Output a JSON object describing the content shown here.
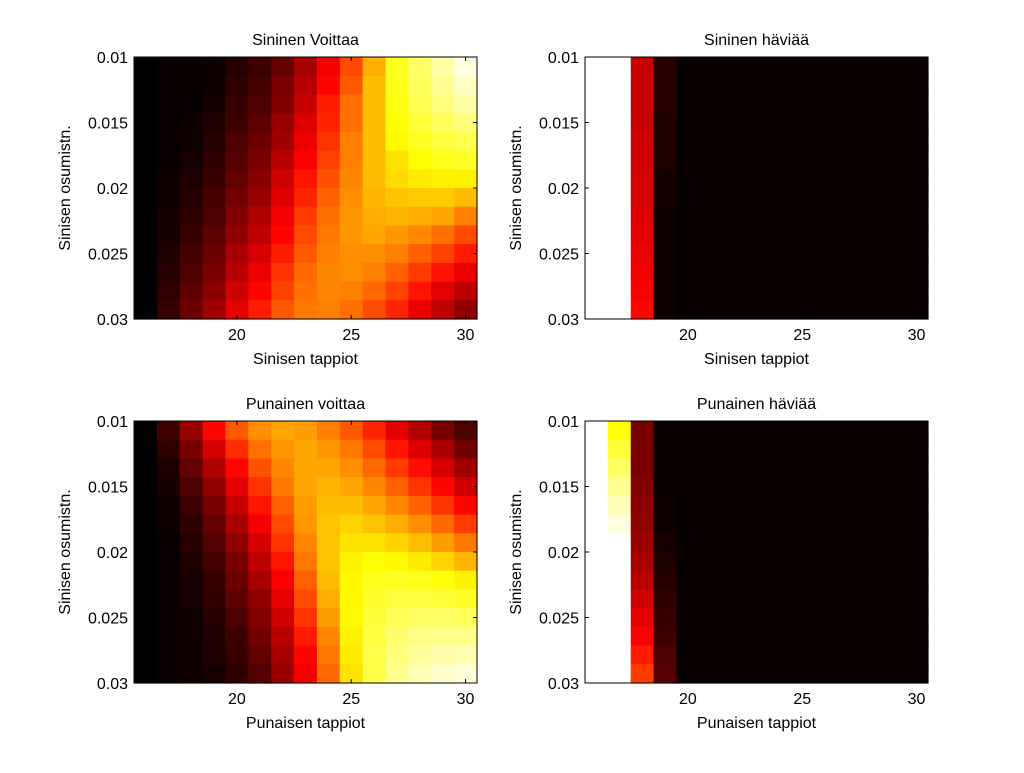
{
  "figure": {
    "colormap": "hot",
    "colormap_stops": [
      "#000000",
      "#ff0000",
      "#ffff00",
      "#ffffff"
    ],
    "frame_color": "#000000",
    "background": "#ffffff"
  },
  "chart_data": [
    {
      "type": "heatmap",
      "title": "Sininen Voittaa",
      "xlabel": "Sinisen tappiot",
      "ylabel": "Sinisen osumistn.",
      "xlim": [
        15.5,
        30.5
      ],
      "ylim": [
        0.03,
        0.01
      ],
      "xticks": [
        "20",
        "25",
        "30"
      ],
      "yticks": [
        "0.01",
        "0.015",
        "0.02",
        "0.025",
        "0.03"
      ],
      "x": [
        16,
        17,
        18,
        19,
        20,
        21,
        22,
        23,
        24,
        25,
        26,
        27,
        28,
        29,
        30
      ],
      "y": [
        0.01,
        0.0116,
        0.0132,
        0.0148,
        0.0164,
        0.018,
        0.0196,
        0.0212,
        0.0228,
        0.0244,
        0.026,
        0.0276,
        0.0292,
        0.03
      ],
      "scale": "hot",
      "z": [
        [
          0.0,
          0.01,
          0.01,
          0.02,
          0.05,
          0.08,
          0.13,
          0.22,
          0.32,
          0.43,
          0.56,
          0.7,
          0.8,
          0.88,
          0.96
        ],
        [
          0.0,
          0.01,
          0.01,
          0.02,
          0.06,
          0.09,
          0.16,
          0.24,
          0.34,
          0.45,
          0.58,
          0.7,
          0.79,
          0.86,
          0.92
        ],
        [
          0.0,
          0.01,
          0.01,
          0.03,
          0.07,
          0.1,
          0.17,
          0.26,
          0.37,
          0.48,
          0.58,
          0.69,
          0.77,
          0.83,
          0.88
        ],
        [
          0.0,
          0.01,
          0.02,
          0.04,
          0.08,
          0.12,
          0.2,
          0.29,
          0.38,
          0.48,
          0.58,
          0.67,
          0.74,
          0.79,
          0.83
        ],
        [
          0.0,
          0.01,
          0.02,
          0.05,
          0.1,
          0.14,
          0.21,
          0.31,
          0.4,
          0.5,
          0.58,
          0.66,
          0.71,
          0.75,
          0.77
        ],
        [
          0.0,
          0.01,
          0.03,
          0.06,
          0.11,
          0.16,
          0.24,
          0.33,
          0.42,
          0.5,
          0.58,
          0.63,
          0.67,
          0.7,
          0.72
        ],
        [
          0.0,
          0.02,
          0.04,
          0.07,
          0.13,
          0.18,
          0.27,
          0.36,
          0.44,
          0.51,
          0.58,
          0.62,
          0.64,
          0.65,
          0.65
        ],
        [
          0.0,
          0.02,
          0.05,
          0.09,
          0.15,
          0.2,
          0.29,
          0.38,
          0.46,
          0.52,
          0.57,
          0.59,
          0.6,
          0.6,
          0.58
        ],
        [
          0.0,
          0.03,
          0.06,
          0.1,
          0.17,
          0.23,
          0.32,
          0.41,
          0.48,
          0.53,
          0.56,
          0.57,
          0.56,
          0.55,
          0.5
        ],
        [
          0.0,
          0.03,
          0.07,
          0.12,
          0.19,
          0.25,
          0.34,
          0.43,
          0.49,
          0.53,
          0.55,
          0.53,
          0.51,
          0.48,
          0.43
        ],
        [
          0.0,
          0.04,
          0.09,
          0.14,
          0.22,
          0.28,
          0.37,
          0.45,
          0.5,
          0.52,
          0.52,
          0.5,
          0.46,
          0.42,
          0.37
        ],
        [
          0.0,
          0.05,
          0.1,
          0.16,
          0.24,
          0.31,
          0.4,
          0.47,
          0.51,
          0.52,
          0.5,
          0.46,
          0.41,
          0.36,
          0.31
        ],
        [
          0.0,
          0.06,
          0.12,
          0.18,
          0.27,
          0.34,
          0.42,
          0.48,
          0.51,
          0.5,
          0.47,
          0.42,
          0.36,
          0.3,
          0.25
        ],
        [
          0.0,
          0.07,
          0.14,
          0.21,
          0.3,
          0.37,
          0.45,
          0.49,
          0.5,
          0.48,
          0.43,
          0.38,
          0.31,
          0.25,
          0.19
        ]
      ]
    },
    {
      "type": "heatmap",
      "title": "Sininen häviää",
      "xlabel": "Sinisen tappiot",
      "ylabel": "Sinisen osumistn.",
      "xlim": [
        15.5,
        30.5
      ],
      "ylim": [
        0.03,
        0.01
      ],
      "xticks": [
        "20",
        "25",
        "30"
      ],
      "yticks": [
        "0.01",
        "0.015",
        "0.02",
        "0.025",
        "0.03"
      ],
      "x": [
        16,
        17,
        18,
        19,
        20,
        21,
        22,
        23,
        24,
        25,
        26,
        27,
        28,
        29,
        30
      ],
      "y": [
        0.01,
        0.0116,
        0.0132,
        0.0148,
        0.0164,
        0.018,
        0.0196,
        0.0212,
        0.0228,
        0.0244,
        0.026,
        0.0276,
        0.0292,
        0.03
      ],
      "scale": "hot",
      "z": [
        [
          1.0,
          1.0,
          0.26,
          0.05,
          0.01,
          0.01,
          0.01,
          0.01,
          0.01,
          0.01,
          0.01,
          0.01,
          0.01,
          0.01,
          0.01
        ],
        [
          1.0,
          1.0,
          0.26,
          0.05,
          0.01,
          0.01,
          0.01,
          0.01,
          0.01,
          0.01,
          0.01,
          0.01,
          0.01,
          0.01,
          0.01
        ],
        [
          1.0,
          1.0,
          0.26,
          0.05,
          0.01,
          0.01,
          0.01,
          0.01,
          0.01,
          0.01,
          0.01,
          0.01,
          0.01,
          0.01,
          0.01
        ],
        [
          1.0,
          1.0,
          0.26,
          0.04,
          0.01,
          0.01,
          0.01,
          0.01,
          0.01,
          0.01,
          0.01,
          0.01,
          0.01,
          0.01,
          0.01
        ],
        [
          1.0,
          1.0,
          0.27,
          0.04,
          0.01,
          0.01,
          0.01,
          0.01,
          0.01,
          0.01,
          0.01,
          0.01,
          0.01,
          0.01,
          0.01
        ],
        [
          1.0,
          1.0,
          0.27,
          0.04,
          0.01,
          0.01,
          0.01,
          0.01,
          0.01,
          0.01,
          0.01,
          0.01,
          0.01,
          0.01,
          0.01
        ],
        [
          1.0,
          1.0,
          0.28,
          0.03,
          0.01,
          0.01,
          0.01,
          0.01,
          0.01,
          0.01,
          0.01,
          0.01,
          0.01,
          0.01,
          0.01
        ],
        [
          1.0,
          1.0,
          0.28,
          0.03,
          0.01,
          0.01,
          0.01,
          0.01,
          0.01,
          0.01,
          0.01,
          0.01,
          0.01,
          0.01,
          0.01
        ],
        [
          1.0,
          1.0,
          0.29,
          0.02,
          0.01,
          0.01,
          0.01,
          0.01,
          0.01,
          0.01,
          0.01,
          0.01,
          0.01,
          0.01,
          0.01
        ],
        [
          1.0,
          1.0,
          0.3,
          0.02,
          0.01,
          0.01,
          0.01,
          0.01,
          0.01,
          0.01,
          0.01,
          0.01,
          0.01,
          0.01,
          0.01
        ],
        [
          1.0,
          1.0,
          0.31,
          0.02,
          0.01,
          0.01,
          0.01,
          0.01,
          0.01,
          0.01,
          0.01,
          0.01,
          0.01,
          0.01,
          0.01
        ],
        [
          1.0,
          1.0,
          0.32,
          0.02,
          0.01,
          0.01,
          0.01,
          0.01,
          0.01,
          0.01,
          0.01,
          0.01,
          0.01,
          0.01,
          0.01
        ],
        [
          1.0,
          1.0,
          0.33,
          0.02,
          0.01,
          0.01,
          0.01,
          0.01,
          0.01,
          0.01,
          0.01,
          0.01,
          0.01,
          0.01,
          0.01
        ],
        [
          1.0,
          1.0,
          0.34,
          0.02,
          0.01,
          0.01,
          0.01,
          0.01,
          0.01,
          0.01,
          0.01,
          0.01,
          0.01,
          0.01,
          0.01
        ]
      ]
    },
    {
      "type": "heatmap",
      "title": "Punainen voittaa",
      "xlabel": "Punaisen tappiot",
      "ylabel": "Sinisen osumistn.",
      "xlim": [
        15.5,
        30.5
      ],
      "ylim": [
        0.03,
        0.01
      ],
      "xticks": [
        "20",
        "25",
        "30"
      ],
      "yticks": [
        "0.01",
        "0.015",
        "0.02",
        "0.025",
        "0.03"
      ],
      "x": [
        16,
        17,
        18,
        19,
        20,
        21,
        22,
        23,
        24,
        25,
        26,
        27,
        28,
        29,
        30
      ],
      "y": [
        0.01,
        0.0116,
        0.0132,
        0.0148,
        0.0164,
        0.018,
        0.0196,
        0.0212,
        0.0228,
        0.0244,
        0.026,
        0.0276,
        0.0292,
        0.03
      ],
      "scale": "hot",
      "z": [
        [
          0.0,
          0.08,
          0.2,
          0.34,
          0.45,
          0.52,
          0.55,
          0.54,
          0.5,
          0.45,
          0.38,
          0.3,
          0.23,
          0.16,
          0.1
        ],
        [
          0.0,
          0.06,
          0.16,
          0.28,
          0.39,
          0.48,
          0.53,
          0.55,
          0.53,
          0.49,
          0.43,
          0.36,
          0.29,
          0.22,
          0.15
        ],
        [
          0.0,
          0.04,
          0.13,
          0.23,
          0.34,
          0.44,
          0.51,
          0.55,
          0.55,
          0.52,
          0.47,
          0.41,
          0.35,
          0.28,
          0.21
        ],
        [
          0.0,
          0.03,
          0.1,
          0.19,
          0.3,
          0.4,
          0.49,
          0.55,
          0.57,
          0.55,
          0.51,
          0.46,
          0.4,
          0.34,
          0.27
        ],
        [
          0.0,
          0.02,
          0.08,
          0.16,
          0.26,
          0.36,
          0.46,
          0.54,
          0.58,
          0.58,
          0.55,
          0.51,
          0.46,
          0.4,
          0.34
        ],
        [
          0.0,
          0.02,
          0.06,
          0.13,
          0.22,
          0.32,
          0.43,
          0.53,
          0.59,
          0.61,
          0.59,
          0.56,
          0.52,
          0.47,
          0.41
        ],
        [
          0.0,
          0.01,
          0.05,
          0.11,
          0.19,
          0.28,
          0.4,
          0.51,
          0.59,
          0.63,
          0.63,
          0.61,
          0.58,
          0.54,
          0.49
        ],
        [
          0.0,
          0.01,
          0.04,
          0.09,
          0.16,
          0.25,
          0.36,
          0.49,
          0.59,
          0.65,
          0.67,
          0.66,
          0.64,
          0.61,
          0.57
        ],
        [
          0.0,
          0.01,
          0.03,
          0.07,
          0.14,
          0.22,
          0.33,
          0.46,
          0.58,
          0.66,
          0.7,
          0.71,
          0.7,
          0.68,
          0.65
        ],
        [
          0.0,
          0.01,
          0.03,
          0.06,
          0.12,
          0.19,
          0.3,
          0.43,
          0.56,
          0.66,
          0.73,
          0.75,
          0.75,
          0.74,
          0.72
        ],
        [
          0.0,
          0.01,
          0.02,
          0.05,
          0.1,
          0.17,
          0.27,
          0.4,
          0.54,
          0.66,
          0.74,
          0.78,
          0.8,
          0.8,
          0.79
        ],
        [
          0.0,
          0.01,
          0.02,
          0.04,
          0.08,
          0.15,
          0.24,
          0.37,
          0.51,
          0.65,
          0.75,
          0.81,
          0.84,
          0.85,
          0.85
        ],
        [
          0.0,
          0.01,
          0.02,
          0.04,
          0.07,
          0.13,
          0.22,
          0.34,
          0.49,
          0.64,
          0.76,
          0.83,
          0.87,
          0.89,
          0.9
        ],
        [
          0.0,
          0.01,
          0.02,
          0.03,
          0.06,
          0.11,
          0.2,
          0.32,
          0.47,
          0.63,
          0.76,
          0.85,
          0.9,
          0.93,
          0.95
        ]
      ]
    },
    {
      "type": "heatmap",
      "title": "Punainen häviää",
      "xlabel": "Punaisen tappiot",
      "ylabel": "Sinisen osumistn.",
      "xlim": [
        15.5,
        30.5
      ],
      "ylim": [
        0.03,
        0.01
      ],
      "xticks": [
        "20",
        "25",
        "30"
      ],
      "yticks": [
        "0.01",
        "0.015",
        "0.02",
        "0.025",
        "0.03"
      ],
      "x": [
        16,
        17,
        18,
        19,
        20,
        21,
        22,
        23,
        24,
        25,
        26,
        27,
        28,
        29,
        30
      ],
      "y": [
        0.01,
        0.0116,
        0.0132,
        0.0148,
        0.0164,
        0.018,
        0.0196,
        0.0212,
        0.0228,
        0.0244,
        0.026,
        0.0276,
        0.0292,
        0.03
      ],
      "scale": "hot",
      "z": [
        [
          1.0,
          0.68,
          0.16,
          0.01,
          0.01,
          0.01,
          0.01,
          0.01,
          0.01,
          0.01,
          0.01,
          0.01,
          0.01,
          0.01,
          0.01
        ],
        [
          1.0,
          0.74,
          0.16,
          0.01,
          0.01,
          0.01,
          0.01,
          0.01,
          0.01,
          0.01,
          0.01,
          0.01,
          0.01,
          0.01,
          0.01
        ],
        [
          1.0,
          0.8,
          0.16,
          0.01,
          0.01,
          0.01,
          0.01,
          0.01,
          0.01,
          0.01,
          0.01,
          0.01,
          0.01,
          0.01,
          0.01
        ],
        [
          1.0,
          0.86,
          0.17,
          0.01,
          0.01,
          0.01,
          0.01,
          0.01,
          0.01,
          0.01,
          0.01,
          0.01,
          0.01,
          0.01,
          0.01
        ],
        [
          1.0,
          0.91,
          0.18,
          0.02,
          0.01,
          0.01,
          0.01,
          0.01,
          0.01,
          0.01,
          0.01,
          0.01,
          0.01,
          0.01,
          0.01
        ],
        [
          1.0,
          0.96,
          0.19,
          0.02,
          0.01,
          0.01,
          0.01,
          0.01,
          0.01,
          0.01,
          0.01,
          0.01,
          0.01,
          0.01,
          0.01
        ],
        [
          1.0,
          1.0,
          0.2,
          0.03,
          0.01,
          0.01,
          0.01,
          0.01,
          0.01,
          0.01,
          0.01,
          0.01,
          0.01,
          0.01,
          0.01
        ],
        [
          1.0,
          1.0,
          0.22,
          0.04,
          0.01,
          0.01,
          0.01,
          0.01,
          0.01,
          0.01,
          0.01,
          0.01,
          0.01,
          0.01,
          0.01
        ],
        [
          1.0,
          1.0,
          0.24,
          0.05,
          0.01,
          0.01,
          0.01,
          0.01,
          0.01,
          0.01,
          0.01,
          0.01,
          0.01,
          0.01,
          0.01
        ],
        [
          1.0,
          1.0,
          0.27,
          0.06,
          0.01,
          0.01,
          0.01,
          0.01,
          0.01,
          0.01,
          0.01,
          0.01,
          0.01,
          0.01,
          0.01
        ],
        [
          1.0,
          1.0,
          0.3,
          0.07,
          0.01,
          0.01,
          0.01,
          0.01,
          0.01,
          0.01,
          0.01,
          0.01,
          0.01,
          0.01,
          0.01
        ],
        [
          1.0,
          1.0,
          0.33,
          0.08,
          0.01,
          0.01,
          0.01,
          0.01,
          0.01,
          0.01,
          0.01,
          0.01,
          0.01,
          0.01,
          0.01
        ],
        [
          1.0,
          1.0,
          0.37,
          0.1,
          0.01,
          0.01,
          0.01,
          0.01,
          0.01,
          0.01,
          0.01,
          0.01,
          0.01,
          0.01,
          0.01
        ],
        [
          1.0,
          1.0,
          0.41,
          0.11,
          0.01,
          0.01,
          0.01,
          0.01,
          0.01,
          0.01,
          0.01,
          0.01,
          0.01,
          0.01,
          0.01
        ]
      ]
    }
  ]
}
